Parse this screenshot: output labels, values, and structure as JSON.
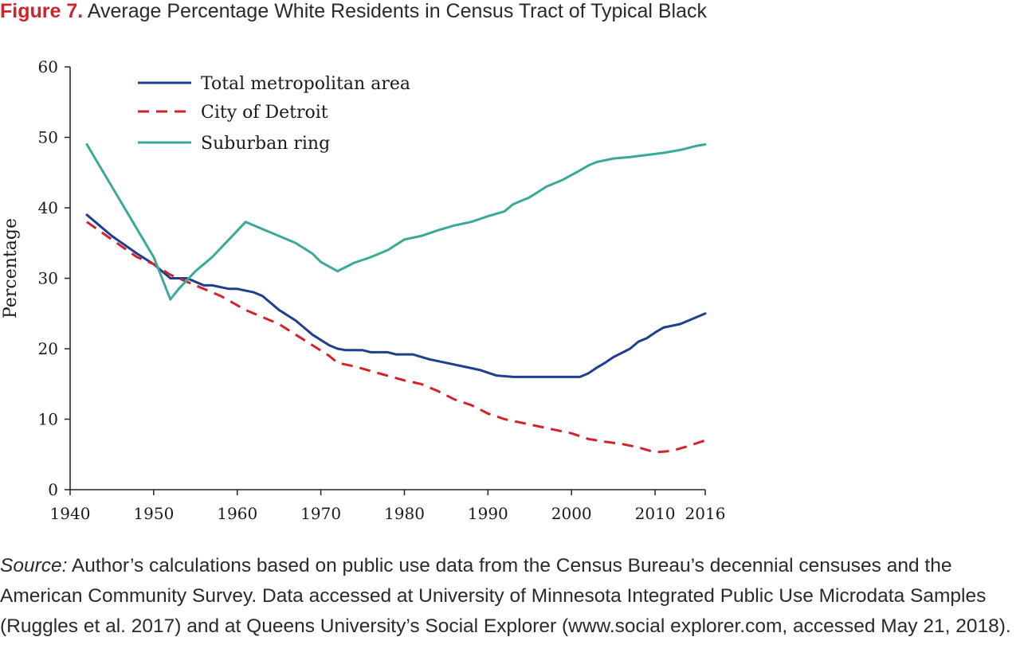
{
  "figure": {
    "label": "Figure 7.",
    "title": "Average Percentage White Residents in Census Tract of Typical Black"
  },
  "source": {
    "label": "Source:",
    "text": "Author’s calculations based on public use data from the Census Bureau’s decennial censuses and the American Community Survey. Data accessed at University of Minnesota Integrated Public Use Microdata Samples (Ruggles et al. 2017) and at Queens University’s Social Explorer (www.social explorer.com, accessed May 21, 2018)."
  },
  "chart_data": {
    "type": "line",
    "title": "",
    "xlabel": "",
    "ylabel": "Percentage",
    "xlim": [
      1940,
      2016
    ],
    "ylim": [
      0,
      60
    ],
    "xticks": [
      1940,
      1950,
      1960,
      1970,
      1980,
      1990,
      2000,
      2010,
      2016
    ],
    "yticks": [
      0,
      10,
      20,
      30,
      40,
      50,
      60
    ],
    "grid": false,
    "legend_position": "top-left",
    "series": [
      {
        "name": "Total metropolitan area",
        "color": "#1f3e8f",
        "dash": "solid",
        "points": [
          [
            1942,
            39
          ],
          [
            1945,
            36
          ],
          [
            1948,
            33.5
          ],
          [
            1950,
            32
          ],
          [
            1952,
            30
          ],
          [
            1954,
            30
          ],
          [
            1956,
            29
          ],
          [
            1957,
            29
          ],
          [
            1959,
            28.5
          ],
          [
            1960,
            28.5
          ],
          [
            1962,
            28
          ],
          [
            1963,
            27.5
          ],
          [
            1965,
            25.5
          ],
          [
            1967,
            24
          ],
          [
            1969,
            22
          ],
          [
            1971,
            20.5
          ],
          [
            1972,
            20
          ],
          [
            1973,
            19.8
          ],
          [
            1975,
            19.8
          ],
          [
            1976,
            19.5
          ],
          [
            1978,
            19.5
          ],
          [
            1979,
            19.2
          ],
          [
            1981,
            19.2
          ],
          [
            1983,
            18.5
          ],
          [
            1985,
            18
          ],
          [
            1987,
            17.5
          ],
          [
            1989,
            17
          ],
          [
            1991,
            16.2
          ],
          [
            1993,
            16
          ],
          [
            1997,
            16
          ],
          [
            2001,
            16
          ],
          [
            2002,
            16.5
          ],
          [
            2003,
            17.3
          ],
          [
            2004,
            18
          ],
          [
            2005,
            18.8
          ],
          [
            2007,
            20
          ],
          [
            2008,
            21
          ],
          [
            2009,
            21.5
          ],
          [
            2010,
            22.3
          ],
          [
            2011,
            23
          ],
          [
            2013,
            23.5
          ],
          [
            2014,
            24
          ],
          [
            2016,
            25
          ]
        ]
      },
      {
        "name": "City of Detroit",
        "color": "#d2232a",
        "dash": "dashed",
        "points": [
          [
            1942,
            38
          ],
          [
            1945,
            35.5
          ],
          [
            1948,
            33
          ],
          [
            1950,
            32
          ],
          [
            1952,
            30.5
          ],
          [
            1955,
            29
          ],
          [
            1958,
            27.5
          ],
          [
            1961,
            25.5
          ],
          [
            1963,
            24.5
          ],
          [
            1965,
            23.5
          ],
          [
            1967,
            22
          ],
          [
            1969,
            20.5
          ],
          [
            1971,
            19
          ],
          [
            1972,
            18
          ],
          [
            1974,
            17.5
          ],
          [
            1977,
            16.5
          ],
          [
            1980,
            15.5
          ],
          [
            1982,
            15
          ],
          [
            1984,
            14
          ],
          [
            1986,
            12.8
          ],
          [
            1988,
            12
          ],
          [
            1990,
            10.8
          ],
          [
            1992,
            10
          ],
          [
            1994,
            9.5
          ],
          [
            1996,
            9
          ],
          [
            1998,
            8.5
          ],
          [
            2000,
            8
          ],
          [
            2002,
            7.2
          ],
          [
            2004,
            6.8
          ],
          [
            2006,
            6.5
          ],
          [
            2008,
            6
          ],
          [
            2010,
            5.3
          ],
          [
            2012,
            5.5
          ],
          [
            2014,
            6.2
          ],
          [
            2016,
            7
          ]
        ]
      },
      {
        "name": "Suburban ring",
        "color": "#3aaa98",
        "dash": "solid",
        "points": [
          [
            1942,
            49
          ],
          [
            1943,
            47
          ],
          [
            1945,
            43
          ],
          [
            1947,
            39
          ],
          [
            1949,
            35
          ],
          [
            1950,
            33
          ],
          [
            1952,
            27
          ],
          [
            1953,
            28.5
          ],
          [
            1955,
            31
          ],
          [
            1957,
            33
          ],
          [
            1959,
            35.5
          ],
          [
            1961,
            38
          ],
          [
            1963,
            37
          ],
          [
            1965,
            36
          ],
          [
            1967,
            35
          ],
          [
            1969,
            33.5
          ],
          [
            1970,
            32.3
          ],
          [
            1972,
            31
          ],
          [
            1974,
            32.2
          ],
          [
            1976,
            33
          ],
          [
            1978,
            34
          ],
          [
            1980,
            35.5
          ],
          [
            1982,
            36
          ],
          [
            1984,
            36.8
          ],
          [
            1986,
            37.5
          ],
          [
            1988,
            38
          ],
          [
            1990,
            38.8
          ],
          [
            1992,
            39.5
          ],
          [
            1993,
            40.5
          ],
          [
            1995,
            41.5
          ],
          [
            1997,
            43
          ],
          [
            1999,
            44
          ],
          [
            2001,
            45.3
          ],
          [
            2002,
            46
          ],
          [
            2003,
            46.5
          ],
          [
            2005,
            47
          ],
          [
            2007,
            47.2
          ],
          [
            2009,
            47.5
          ],
          [
            2011,
            47.8
          ],
          [
            2013,
            48.2
          ],
          [
            2015,
            48.8
          ],
          [
            2016,
            49
          ]
        ]
      }
    ]
  }
}
